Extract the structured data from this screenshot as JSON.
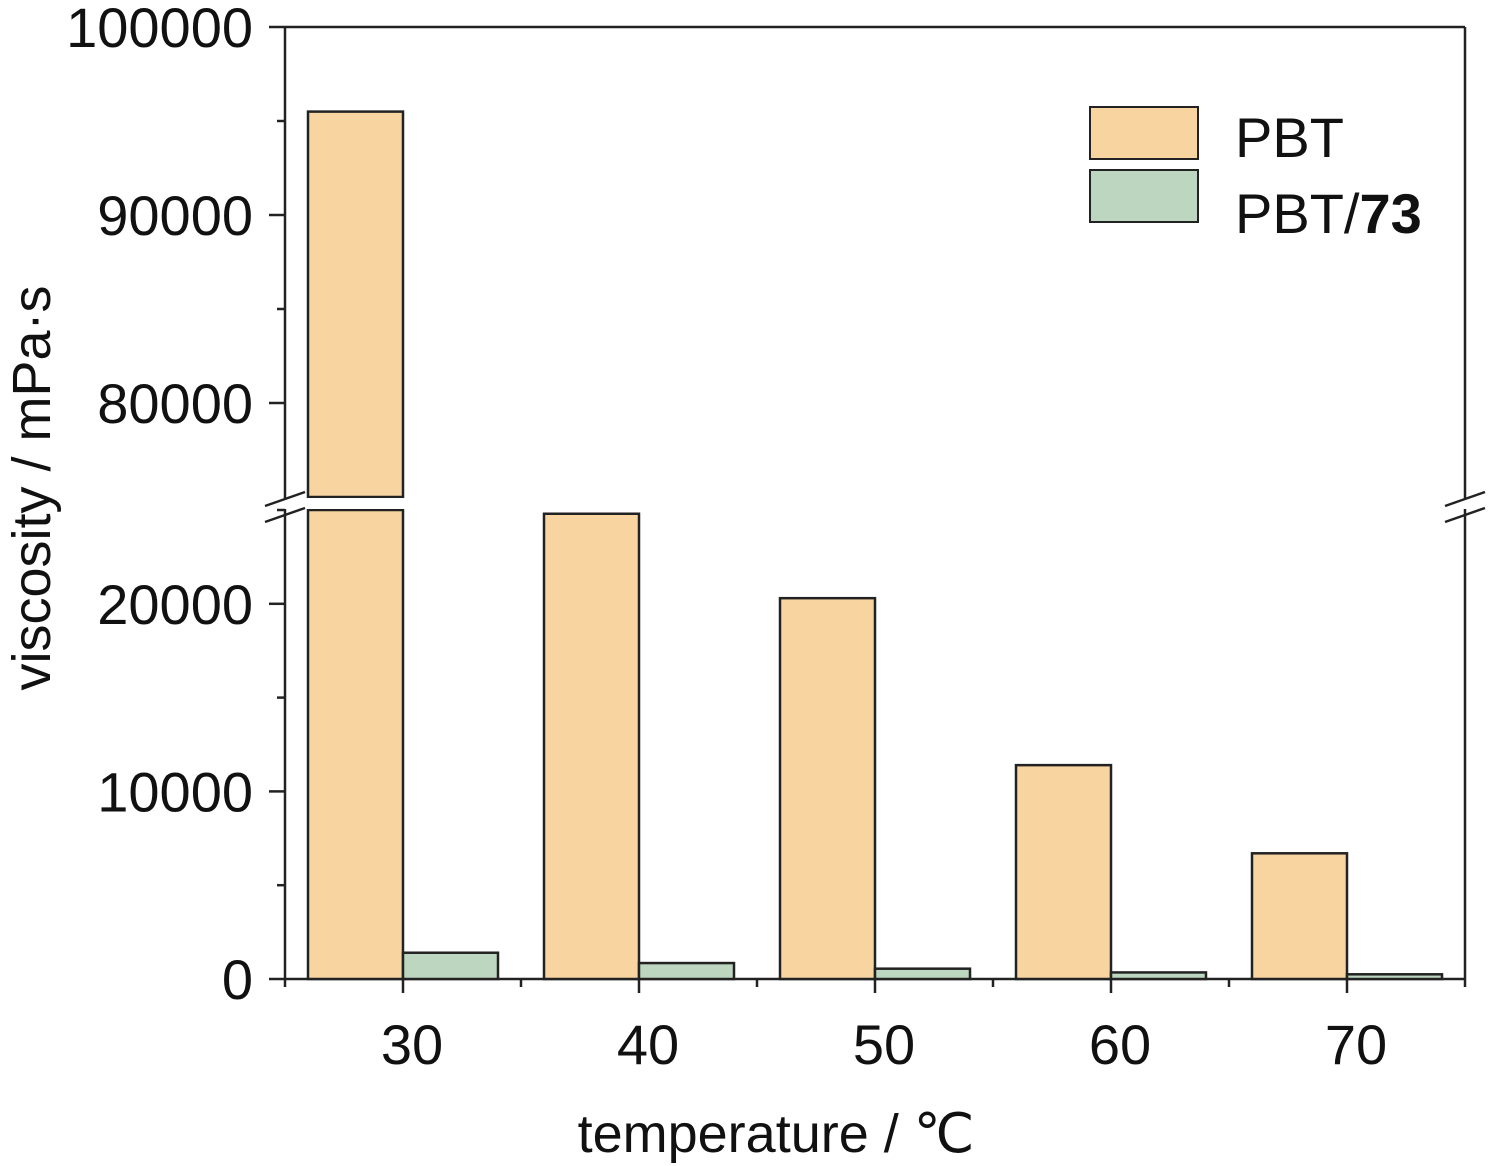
{
  "chart_data": {
    "type": "bar",
    "xlabel": "temperature / ℃",
    "ylabel": "viscosity / mPa·s",
    "categories": [
      "30",
      "40",
      "50",
      "60",
      "70"
    ],
    "series": [
      {
        "name": "PBT",
        "values": [
          95500,
          24800,
          20300,
          11400,
          6700
        ],
        "color": "#f8d4a0"
      },
      {
        "name": "PBT/73",
        "name_prefix": "PBT/",
        "name_bold": "73",
        "values": [
          1400,
          850,
          550,
          350,
          250
        ],
        "color": "#bdd6c0"
      }
    ],
    "y_axis_break": {
      "lower_max": 25000,
      "upper_min": 75000
    },
    "lower_ylim": [
      0,
      25000
    ],
    "upper_ylim": [
      75000,
      100000
    ],
    "lower_ticks": [
      "0",
      "10000",
      "20000"
    ],
    "upper_ticks": [
      "80000",
      "90000",
      "100000"
    ],
    "legend_position": "top-right",
    "edge_color": "#222222"
  }
}
